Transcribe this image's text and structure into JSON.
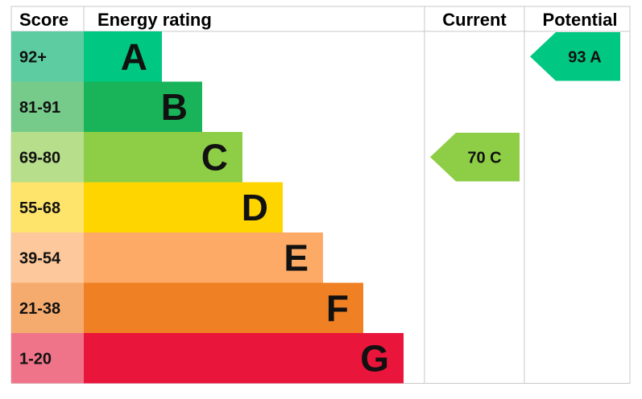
{
  "headers": {
    "score": "Score",
    "energy_rating": "Energy rating",
    "current": "Current",
    "potential": "Potential"
  },
  "chart_data": {
    "type": "bar",
    "title": "",
    "categories": [
      "A",
      "B",
      "C",
      "D",
      "E",
      "F",
      "G"
    ],
    "bands": [
      {
        "letter": "A",
        "range": "92+",
        "min": 92,
        "max": 100,
        "color": "#00c781",
        "score_bg": "#5dcca1"
      },
      {
        "letter": "B",
        "range": "81-91",
        "min": 81,
        "max": 91,
        "color": "#19b459",
        "score_bg": "#76cb8b"
      },
      {
        "letter": "C",
        "range": "69-80",
        "min": 69,
        "max": 80,
        "color": "#8dce46",
        "score_bg": "#b7de8b"
      },
      {
        "letter": "D",
        "range": "55-68",
        "min": 55,
        "max": 68,
        "color": "#ffd500",
        "score_bg": "#ffe46b"
      },
      {
        "letter": "E",
        "range": "39-54",
        "min": 39,
        "max": 54,
        "color": "#fcaa65",
        "score_bg": "#fdc89b"
      },
      {
        "letter": "F",
        "range": "21-38",
        "min": 21,
        "max": 38,
        "color": "#ef8023",
        "score_bg": "#f5ab6e"
      },
      {
        "letter": "G",
        "range": "1-20",
        "min": 1,
        "max": 20,
        "color": "#e9153b",
        "score_bg": "#f07489"
      }
    ],
    "current": {
      "value": 70,
      "band": "C",
      "label": "70 C",
      "color": "#8dce46"
    },
    "potential": {
      "value": 93,
      "band": "A",
      "label": "93 A",
      "color": "#00c781"
    }
  }
}
